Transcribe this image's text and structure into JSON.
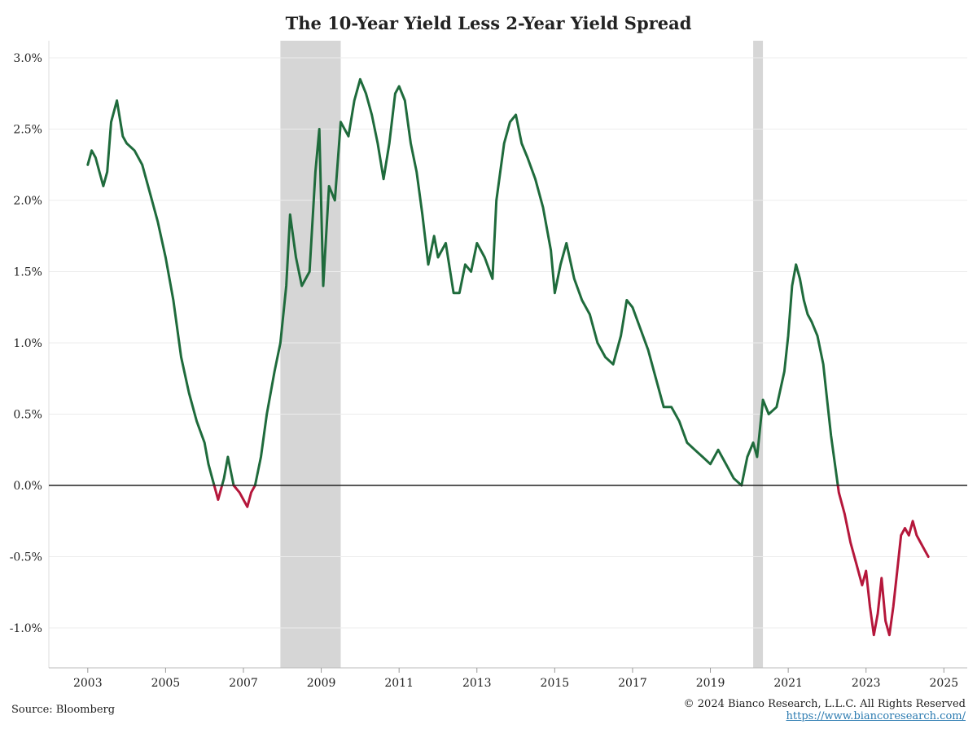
{
  "chart_data": {
    "type": "line",
    "title": "The 10-Year Yield Less 2-Year Yield Spread",
    "xlabel": "",
    "ylabel": "",
    "ylim": [
      -1.28,
      3.12
    ],
    "xlim": [
      2002.0,
      2025.6
    ],
    "y_ticks": [
      3.0,
      2.5,
      2.0,
      1.5,
      1.0,
      0.5,
      0.0,
      -0.5,
      -1.0
    ],
    "y_tick_labels": [
      "3.0%",
      "2.5%",
      "2.0%",
      "1.5%",
      "1.0%",
      "0.5%",
      "0.0%",
      "-0.5%",
      "-1.0%"
    ],
    "x_ticks": [
      2003,
      2005,
      2007,
      2009,
      2011,
      2013,
      2015,
      2017,
      2019,
      2021,
      2023,
      2025
    ],
    "x_tick_labels": [
      "2003",
      "2005",
      "2007",
      "2009",
      "2011",
      "2013",
      "2015",
      "2017",
      "2019",
      "2021",
      "2023",
      "2025"
    ],
    "grid": "horizontal",
    "positive_color": "#1f6b3c",
    "negative_color": "#b5173b",
    "zero_line_color": "#222222",
    "recession_color": "#d6d6d6",
    "recessions": [
      [
        2007.95,
        2009.5
      ],
      [
        2020.1,
        2020.35
      ]
    ],
    "series": [
      {
        "x": [
          2003.0,
          2003.1,
          2003.2,
          2003.3,
          2003.4,
          2003.5,
          2003.6,
          2003.75,
          2003.9,
          2004.0,
          2004.2,
          2004.4,
          2004.6,
          2004.8,
          2005.0,
          2005.2,
          2005.4,
          2005.6,
          2005.8,
          2006.0,
          2006.1,
          2006.2,
          2006.35,
          2006.5,
          2006.6,
          2006.75,
          2006.9,
          2007.0,
          2007.1,
          2007.2,
          2007.3,
          2007.45,
          2007.6,
          2007.8,
          2007.95,
          2008.1,
          2008.2,
          2008.35,
          2008.5,
          2008.7,
          2008.85,
          2008.95,
          2009.05,
          2009.2,
          2009.35,
          2009.5,
          2009.7,
          2009.85,
          2010.0,
          2010.15,
          2010.3,
          2010.45,
          2010.6,
          2010.75,
          2010.9,
          2011.0,
          2011.15,
          2011.3,
          2011.45,
          2011.6,
          2011.75,
          2011.9,
          2012.0,
          2012.2,
          2012.4,
          2012.55,
          2012.7,
          2012.85,
          2013.0,
          2013.2,
          2013.4,
          2013.5,
          2013.7,
          2013.85,
          2014.0,
          2014.15,
          2014.3,
          2014.5,
          2014.7,
          2014.9,
          2015.0,
          2015.15,
          2015.3,
          2015.5,
          2015.7,
          2015.9,
          2016.1,
          2016.3,
          2016.5,
          2016.7,
          2016.85,
          2017.0,
          2017.2,
          2017.4,
          2017.6,
          2017.8,
          2018.0,
          2018.2,
          2018.4,
          2018.6,
          2018.8,
          2019.0,
          2019.2,
          2019.4,
          2019.6,
          2019.8,
          2019.95,
          2020.1,
          2020.2,
          2020.35,
          2020.5,
          2020.7,
          2020.9,
          2021.0,
          2021.1,
          2021.2,
          2021.3,
          2021.4,
          2021.5,
          2021.6,
          2021.75,
          2021.9,
          2022.0,
          2022.1,
          2022.2,
          2022.3,
          2022.45,
          2022.6,
          2022.75,
          2022.9,
          2023.0,
          2023.1,
          2023.2,
          2023.3,
          2023.4,
          2023.5,
          2023.6,
          2023.7,
          2023.8,
          2023.9,
          2024.0,
          2024.1,
          2024.2,
          2024.3,
          2024.4,
          2024.5,
          2024.6
        ],
        "y": [
          2.25,
          2.35,
          2.3,
          2.2,
          2.1,
          2.2,
          2.55,
          2.7,
          2.45,
          2.4,
          2.35,
          2.25,
          2.05,
          1.85,
          1.6,
          1.3,
          0.9,
          0.65,
          0.45,
          0.3,
          0.15,
          0.05,
          -0.1,
          0.05,
          0.2,
          0.0,
          -0.05,
          -0.1,
          -0.15,
          -0.05,
          0.0,
          0.2,
          0.5,
          0.8,
          1.0,
          1.4,
          1.9,
          1.6,
          1.4,
          1.5,
          2.2,
          2.5,
          1.4,
          2.1,
          2.0,
          2.55,
          2.45,
          2.7,
          2.85,
          2.75,
          2.6,
          2.4,
          2.15,
          2.4,
          2.75,
          2.8,
          2.7,
          2.4,
          2.2,
          1.9,
          1.55,
          1.75,
          1.6,
          1.7,
          1.35,
          1.35,
          1.55,
          1.5,
          1.7,
          1.6,
          1.45,
          2.0,
          2.4,
          2.55,
          2.6,
          2.4,
          2.3,
          2.15,
          1.95,
          1.65,
          1.35,
          1.55,
          1.7,
          1.45,
          1.3,
          1.2,
          1.0,
          0.9,
          0.85,
          1.05,
          1.3,
          1.25,
          1.1,
          0.95,
          0.75,
          0.55,
          0.55,
          0.45,
          0.3,
          0.25,
          0.2,
          0.15,
          0.25,
          0.15,
          0.05,
          0.0,
          0.2,
          0.3,
          0.2,
          0.6,
          0.5,
          0.55,
          0.8,
          1.05,
          1.4,
          1.55,
          1.45,
          1.3,
          1.2,
          1.15,
          1.05,
          0.85,
          0.6,
          0.35,
          0.15,
          -0.05,
          -0.2,
          -0.4,
          -0.55,
          -0.7,
          -0.6,
          -0.85,
          -1.05,
          -0.9,
          -0.65,
          -0.95,
          -1.05,
          -0.85,
          -0.6,
          -0.35,
          -0.3,
          -0.35,
          -0.25,
          -0.35,
          -0.4,
          -0.45,
          -0.5
        ]
      }
    ]
  },
  "footer": {
    "source": "Source: Bloomberg",
    "copyright": "© 2024 Bianco Research, L.L.C. All Rights Reserved",
    "url": "https://www.biancoresearch.com/"
  }
}
